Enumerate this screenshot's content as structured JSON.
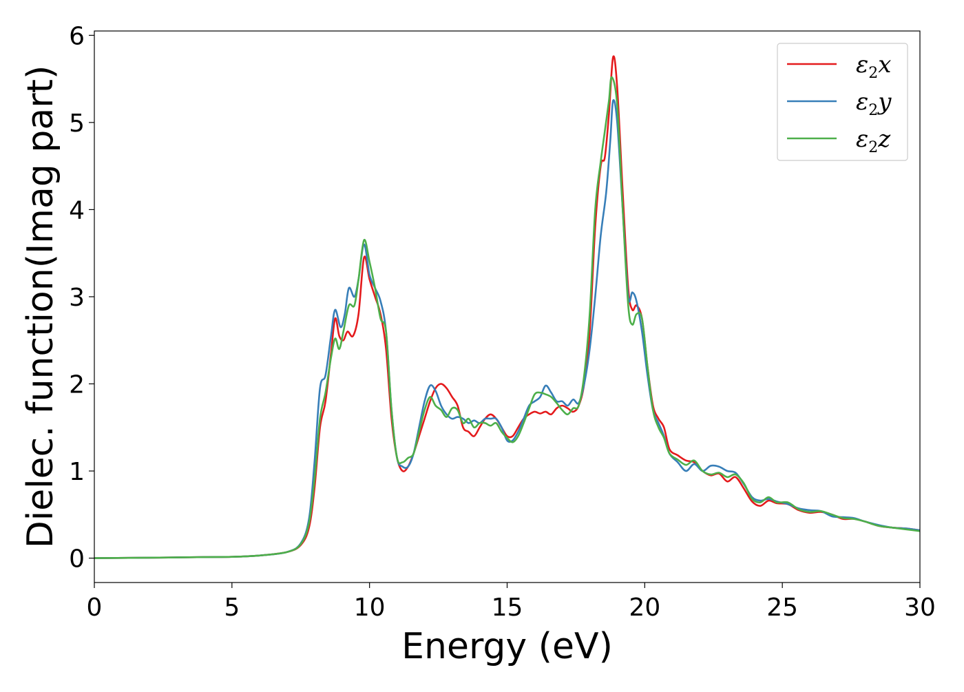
{
  "chart_data": {
    "type": "line",
    "xlabel": "Energy (eV)",
    "ylabel": "Dielec. function(Imag part)",
    "xlim": [
      0,
      30
    ],
    "ylim": [
      -0.28,
      6.05
    ],
    "xticks": [
      0,
      5,
      10,
      15,
      20,
      25,
      30
    ],
    "yticks": [
      0,
      1,
      2,
      3,
      4,
      5,
      6
    ],
    "legend_position": "top-right",
    "grid": false,
    "series": [
      {
        "name": "ε2x",
        "legend_main": "ε",
        "legend_sub": "2",
        "legend_tail": "x",
        "color": "#e41a1c",
        "points": [
          [
            0,
            0.0
          ],
          [
            2,
            0.005
          ],
          [
            4,
            0.012
          ],
          [
            5,
            0.015
          ],
          [
            6,
            0.03
          ],
          [
            7,
            0.07
          ],
          [
            7.5,
            0.15
          ],
          [
            7.8,
            0.35
          ],
          [
            8.0,
            0.8
          ],
          [
            8.2,
            1.5
          ],
          [
            8.4,
            1.8
          ],
          [
            8.6,
            2.35
          ],
          [
            8.75,
            2.75
          ],
          [
            8.9,
            2.55
          ],
          [
            9.05,
            2.5
          ],
          [
            9.2,
            2.6
          ],
          [
            9.4,
            2.55
          ],
          [
            9.6,
            2.8
          ],
          [
            9.8,
            3.45
          ],
          [
            10.0,
            3.2
          ],
          [
            10.2,
            3.0
          ],
          [
            10.4,
            2.8
          ],
          [
            10.6,
            2.4
          ],
          [
            10.8,
            1.6
          ],
          [
            11.0,
            1.15
          ],
          [
            11.2,
            1.0
          ],
          [
            11.4,
            1.05
          ],
          [
            11.6,
            1.2
          ],
          [
            11.8,
            1.4
          ],
          [
            12.0,
            1.6
          ],
          [
            12.2,
            1.8
          ],
          [
            12.4,
            1.95
          ],
          [
            12.6,
            2.0
          ],
          [
            12.8,
            1.95
          ],
          [
            13.0,
            1.85
          ],
          [
            13.2,
            1.75
          ],
          [
            13.4,
            1.5
          ],
          [
            13.6,
            1.45
          ],
          [
            13.8,
            1.4
          ],
          [
            14.0,
            1.5
          ],
          [
            14.2,
            1.6
          ],
          [
            14.4,
            1.65
          ],
          [
            14.6,
            1.6
          ],
          [
            14.8,
            1.5
          ],
          [
            15.0,
            1.4
          ],
          [
            15.2,
            1.4
          ],
          [
            15.4,
            1.5
          ],
          [
            15.6,
            1.6
          ],
          [
            15.8,
            1.65
          ],
          [
            16.0,
            1.68
          ],
          [
            16.2,
            1.66
          ],
          [
            16.4,
            1.68
          ],
          [
            16.6,
            1.65
          ],
          [
            16.8,
            1.72
          ],
          [
            17.0,
            1.75
          ],
          [
            17.2,
            1.72
          ],
          [
            17.4,
            1.68
          ],
          [
            17.6,
            1.75
          ],
          [
            17.8,
            2.0
          ],
          [
            18.0,
            2.6
          ],
          [
            18.2,
            3.8
          ],
          [
            18.4,
            4.5
          ],
          [
            18.55,
            4.6
          ],
          [
            18.7,
            5.1
          ],
          [
            18.85,
            5.75
          ],
          [
            19.0,
            5.4
          ],
          [
            19.2,
            4.2
          ],
          [
            19.4,
            3.1
          ],
          [
            19.55,
            2.85
          ],
          [
            19.7,
            2.9
          ],
          [
            19.9,
            2.75
          ],
          [
            20.1,
            2.2
          ],
          [
            20.3,
            1.75
          ],
          [
            20.5,
            1.6
          ],
          [
            20.7,
            1.5
          ],
          [
            20.9,
            1.25
          ],
          [
            21.2,
            1.18
          ],
          [
            21.5,
            1.12
          ],
          [
            21.8,
            1.1
          ],
          [
            22.1,
            1.0
          ],
          [
            22.4,
            0.95
          ],
          [
            22.7,
            0.97
          ],
          [
            23.0,
            0.88
          ],
          [
            23.3,
            0.93
          ],
          [
            23.6,
            0.8
          ],
          [
            23.9,
            0.65
          ],
          [
            24.2,
            0.6
          ],
          [
            24.5,
            0.66
          ],
          [
            24.8,
            0.63
          ],
          [
            25.2,
            0.62
          ],
          [
            25.6,
            0.55
          ],
          [
            26.0,
            0.52
          ],
          [
            26.4,
            0.53
          ],
          [
            26.8,
            0.5
          ],
          [
            27.2,
            0.45
          ],
          [
            27.6,
            0.45
          ],
          [
            28.0,
            0.42
          ],
          [
            28.5,
            0.37
          ],
          [
            29.0,
            0.35
          ],
          [
            29.5,
            0.34
          ],
          [
            30.0,
            0.32
          ]
        ]
      },
      {
        "name": "ε2y",
        "legend_main": "ε",
        "legend_sub": "2",
        "legend_tail": "y",
        "color": "#377eb8",
        "points": [
          [
            0,
            0.0
          ],
          [
            2,
            0.005
          ],
          [
            4,
            0.012
          ],
          [
            5,
            0.015
          ],
          [
            6,
            0.03
          ],
          [
            7,
            0.07
          ],
          [
            7.5,
            0.17
          ],
          [
            7.8,
            0.45
          ],
          [
            8.0,
            1.1
          ],
          [
            8.2,
            1.95
          ],
          [
            8.4,
            2.1
          ],
          [
            8.6,
            2.55
          ],
          [
            8.75,
            2.85
          ],
          [
            8.95,
            2.65
          ],
          [
            9.1,
            2.8
          ],
          [
            9.25,
            3.1
          ],
          [
            9.45,
            3.0
          ],
          [
            9.6,
            3.2
          ],
          [
            9.8,
            3.6
          ],
          [
            10.0,
            3.25
          ],
          [
            10.2,
            3.1
          ],
          [
            10.4,
            2.95
          ],
          [
            10.6,
            2.6
          ],
          [
            10.8,
            1.7
          ],
          [
            11.0,
            1.15
          ],
          [
            11.2,
            1.05
          ],
          [
            11.4,
            1.05
          ],
          [
            11.6,
            1.2
          ],
          [
            11.8,
            1.5
          ],
          [
            12.0,
            1.8
          ],
          [
            12.2,
            1.98
          ],
          [
            12.4,
            1.92
          ],
          [
            12.6,
            1.75
          ],
          [
            12.8,
            1.65
          ],
          [
            13.0,
            1.6
          ],
          [
            13.2,
            1.62
          ],
          [
            13.4,
            1.6
          ],
          [
            13.6,
            1.55
          ],
          [
            13.8,
            1.58
          ],
          [
            14.0,
            1.55
          ],
          [
            14.2,
            1.6
          ],
          [
            14.4,
            1.6
          ],
          [
            14.6,
            1.6
          ],
          [
            14.8,
            1.5
          ],
          [
            15.0,
            1.35
          ],
          [
            15.2,
            1.35
          ],
          [
            15.4,
            1.45
          ],
          [
            15.6,
            1.6
          ],
          [
            15.8,
            1.75
          ],
          [
            16.0,
            1.8
          ],
          [
            16.2,
            1.85
          ],
          [
            16.4,
            1.98
          ],
          [
            16.6,
            1.9
          ],
          [
            16.8,
            1.8
          ],
          [
            17.0,
            1.8
          ],
          [
            17.2,
            1.75
          ],
          [
            17.4,
            1.82
          ],
          [
            17.6,
            1.78
          ],
          [
            17.8,
            2.0
          ],
          [
            18.0,
            2.4
          ],
          [
            18.2,
            3.0
          ],
          [
            18.4,
            3.7
          ],
          [
            18.6,
            4.2
          ],
          [
            18.75,
            4.8
          ],
          [
            18.85,
            5.25
          ],
          [
            19.0,
            5.0
          ],
          [
            19.2,
            4.0
          ],
          [
            19.4,
            3.0
          ],
          [
            19.55,
            3.05
          ],
          [
            19.7,
            2.95
          ],
          [
            19.9,
            2.6
          ],
          [
            20.1,
            2.1
          ],
          [
            20.3,
            1.7
          ],
          [
            20.5,
            1.55
          ],
          [
            20.7,
            1.4
          ],
          [
            20.9,
            1.2
          ],
          [
            21.2,
            1.1
          ],
          [
            21.5,
            1.0
          ],
          [
            21.8,
            1.08
          ],
          [
            22.1,
            1.0
          ],
          [
            22.4,
            1.06
          ],
          [
            22.7,
            1.05
          ],
          [
            23.0,
            1.0
          ],
          [
            23.3,
            0.98
          ],
          [
            23.6,
            0.85
          ],
          [
            23.9,
            0.7
          ],
          [
            24.2,
            0.66
          ],
          [
            24.5,
            0.68
          ],
          [
            24.8,
            0.65
          ],
          [
            25.2,
            0.62
          ],
          [
            25.6,
            0.57
          ],
          [
            26.0,
            0.55
          ],
          [
            26.4,
            0.54
          ],
          [
            26.8,
            0.48
          ],
          [
            27.2,
            0.47
          ],
          [
            27.6,
            0.46
          ],
          [
            28.0,
            0.42
          ],
          [
            28.5,
            0.38
          ],
          [
            29.0,
            0.35
          ],
          [
            29.5,
            0.34
          ],
          [
            30.0,
            0.32
          ]
        ]
      },
      {
        "name": "ε2z",
        "legend_main": "ε",
        "legend_sub": "2",
        "legend_tail": "z",
        "color": "#4daf4a",
        "points": [
          [
            0,
            0.0
          ],
          [
            2,
            0.005
          ],
          [
            4,
            0.012
          ],
          [
            5,
            0.015
          ],
          [
            6,
            0.03
          ],
          [
            7,
            0.07
          ],
          [
            7.5,
            0.16
          ],
          [
            7.8,
            0.4
          ],
          [
            8.0,
            0.9
          ],
          [
            8.2,
            1.6
          ],
          [
            8.4,
            1.9
          ],
          [
            8.6,
            2.3
          ],
          [
            8.75,
            2.52
          ],
          [
            8.9,
            2.4
          ],
          [
            9.05,
            2.6
          ],
          [
            9.25,
            2.9
          ],
          [
            9.45,
            2.9
          ],
          [
            9.6,
            3.2
          ],
          [
            9.8,
            3.65
          ],
          [
            10.0,
            3.4
          ],
          [
            10.2,
            3.1
          ],
          [
            10.4,
            2.75
          ],
          [
            10.6,
            2.6
          ],
          [
            10.8,
            1.7
          ],
          [
            11.0,
            1.15
          ],
          [
            11.2,
            1.1
          ],
          [
            11.4,
            1.15
          ],
          [
            11.6,
            1.2
          ],
          [
            11.8,
            1.45
          ],
          [
            12.0,
            1.7
          ],
          [
            12.2,
            1.85
          ],
          [
            12.4,
            1.75
          ],
          [
            12.6,
            1.7
          ],
          [
            12.8,
            1.62
          ],
          [
            13.0,
            1.72
          ],
          [
            13.2,
            1.7
          ],
          [
            13.4,
            1.55
          ],
          [
            13.6,
            1.6
          ],
          [
            13.8,
            1.5
          ],
          [
            14.0,
            1.55
          ],
          [
            14.2,
            1.55
          ],
          [
            14.4,
            1.52
          ],
          [
            14.6,
            1.55
          ],
          [
            14.8,
            1.45
          ],
          [
            15.0,
            1.38
          ],
          [
            15.2,
            1.33
          ],
          [
            15.4,
            1.4
          ],
          [
            15.6,
            1.55
          ],
          [
            15.8,
            1.72
          ],
          [
            16.0,
            1.88
          ],
          [
            16.2,
            1.9
          ],
          [
            16.4,
            1.88
          ],
          [
            16.6,
            1.85
          ],
          [
            16.8,
            1.78
          ],
          [
            17.0,
            1.7
          ],
          [
            17.2,
            1.65
          ],
          [
            17.4,
            1.72
          ],
          [
            17.6,
            1.75
          ],
          [
            17.8,
            2.1
          ],
          [
            18.0,
            2.8
          ],
          [
            18.2,
            4.0
          ],
          [
            18.4,
            4.55
          ],
          [
            18.55,
            4.9
          ],
          [
            18.7,
            5.25
          ],
          [
            18.8,
            5.52
          ],
          [
            19.0,
            5.2
          ],
          [
            19.2,
            4.0
          ],
          [
            19.4,
            2.9
          ],
          [
            19.55,
            2.68
          ],
          [
            19.7,
            2.8
          ],
          [
            19.9,
            2.75
          ],
          [
            20.1,
            2.2
          ],
          [
            20.3,
            1.7
          ],
          [
            20.5,
            1.5
          ],
          [
            20.7,
            1.38
          ],
          [
            20.9,
            1.2
          ],
          [
            21.2,
            1.13
          ],
          [
            21.5,
            1.07
          ],
          [
            21.8,
            1.12
          ],
          [
            22.1,
            1.0
          ],
          [
            22.4,
            0.96
          ],
          [
            22.7,
            0.98
          ],
          [
            23.0,
            0.93
          ],
          [
            23.3,
            0.96
          ],
          [
            23.6,
            0.86
          ],
          [
            23.9,
            0.68
          ],
          [
            24.2,
            0.64
          ],
          [
            24.5,
            0.7
          ],
          [
            24.8,
            0.64
          ],
          [
            25.2,
            0.64
          ],
          [
            25.6,
            0.56
          ],
          [
            26.0,
            0.53
          ],
          [
            26.4,
            0.54
          ],
          [
            26.8,
            0.5
          ],
          [
            27.2,
            0.46
          ],
          [
            27.6,
            0.45
          ],
          [
            28.0,
            0.42
          ],
          [
            28.5,
            0.37
          ],
          [
            29.0,
            0.35
          ],
          [
            29.5,
            0.33
          ],
          [
            30.0,
            0.31
          ]
        ]
      }
    ]
  }
}
